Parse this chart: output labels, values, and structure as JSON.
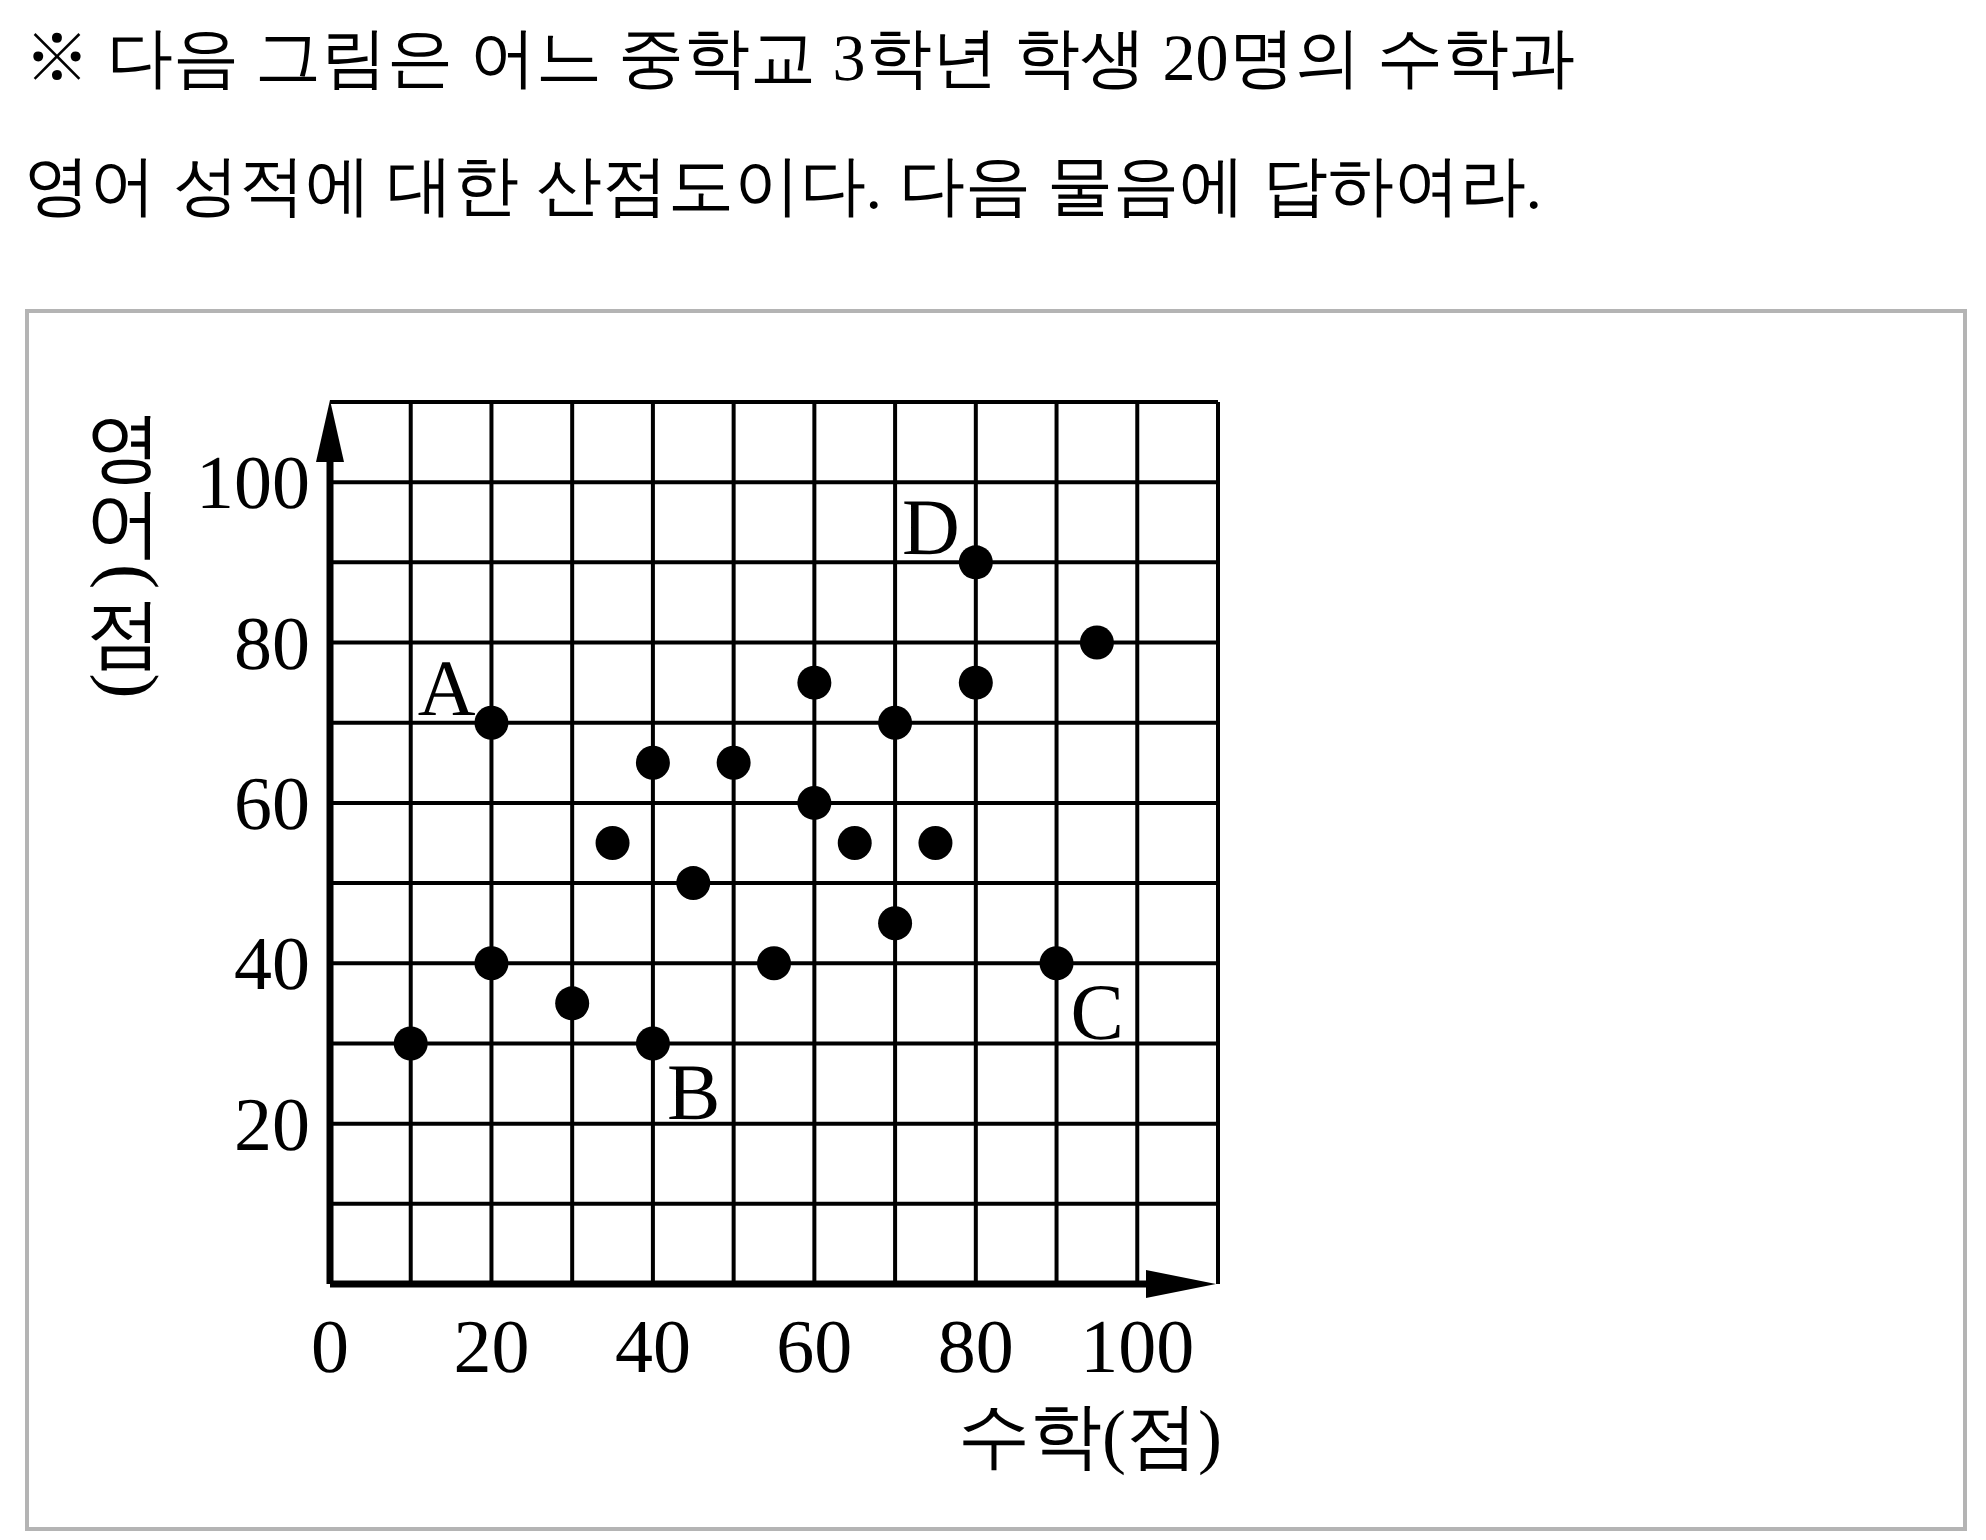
{
  "chart_data": {
    "type": "scatter",
    "title": "※ 다음 그림은 어느 중학교 3학년 학생 20명의 수학과\n영어 성적에 대한 산점도이다. 다음 물음에 답하여라.",
    "xlabel": "수학(점)",
    "ylabel": "영어(점)",
    "x": [
      10,
      20,
      20,
      30,
      35,
      40,
      40,
      45,
      50,
      55,
      60,
      60,
      65,
      70,
      70,
      75,
      80,
      80,
      90,
      95
    ],
    "values": [
      30,
      70,
      40,
      35,
      55,
      65,
      30,
      50,
      65,
      40,
      75,
      60,
      55,
      70,
      45,
      55,
      90,
      75,
      40,
      80
    ],
    "color": "#000000",
    "marker": "circle",
    "xlim": [
      0,
      110
    ],
    "ylim": [
      0,
      110
    ],
    "xticks": [
      0,
      {
        "value": 10,
        "label": null
      },
      20,
      {
        "value": 30,
        "label": null
      },
      40,
      {
        "value": 50,
        "label": null
      },
      60,
      {
        "value": 70,
        "label": null
      },
      80,
      {
        "value": 90,
        "label": null
      },
      100,
      {
        "value": 110,
        "label": null
      }
    ],
    "yticks": [
      {
        "value": 10,
        "label": null
      },
      20,
      {
        "value": 30,
        "label": null
      },
      40,
      {
        "value": 50,
        "label": null
      },
      60,
      {
        "value": 70,
        "label": null
      },
      80,
      {
        "value": 90,
        "label": null
      },
      100,
      {
        "value": 110,
        "label": null
      }
    ],
    "grid": true,
    "annotations": [
      {
        "text": "A",
        "x": 20,
        "y": 70
      },
      {
        "text": "B",
        "x": 40,
        "y": 30
      },
      {
        "text": "C",
        "x": 90,
        "y": 40
      },
      {
        "text": "D",
        "x": 80,
        "y": 90
      }
    ]
  }
}
